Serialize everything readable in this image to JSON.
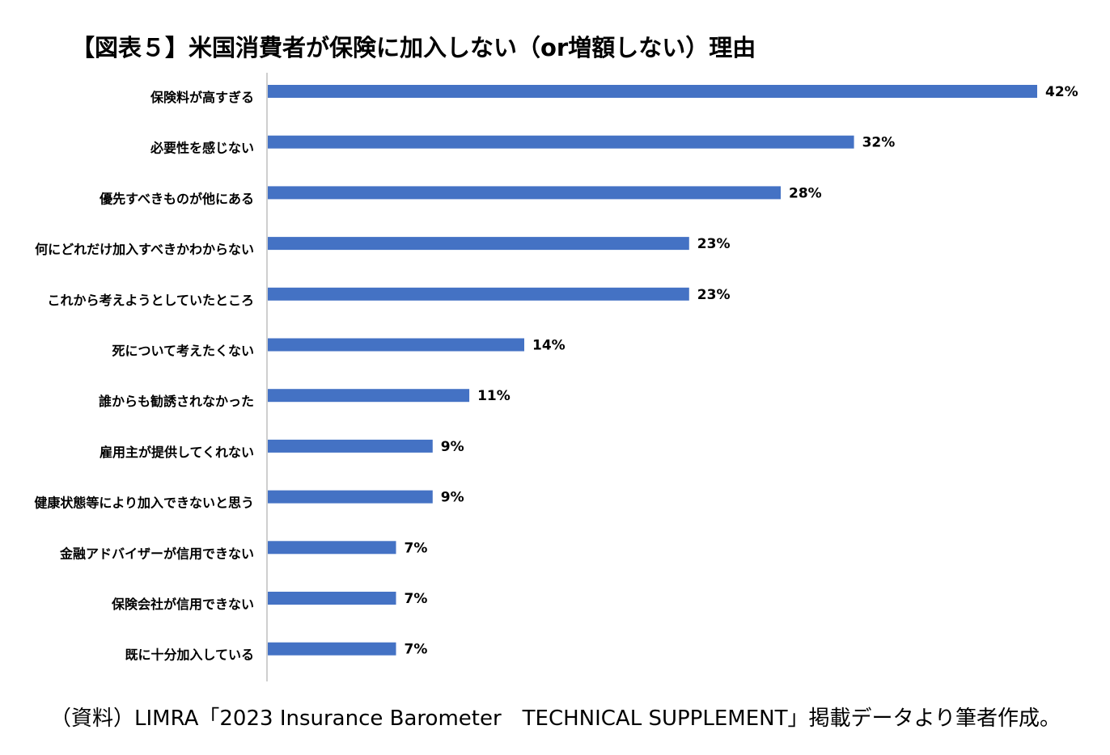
{
  "chart_data": {
    "type": "bar",
    "orientation": "horizontal",
    "title": "【図表５】米国消費者が保険に加入しない（or増額しない）理由",
    "categories": [
      "保険料が高すぎる",
      "必要性を感じない",
      "優先すべきものが他にある",
      "何にどれだけ加入すべきかわからない",
      "これから考えようとしていたところ",
      "死について考えたくない",
      "誰からも勧誘されなかった",
      "雇用主が提供してくれない",
      "健康状態等により加入できないと思う",
      "金融アドバイザーが信用できない",
      "保険会社が信用できない",
      "既に十分加入している"
    ],
    "values": [
      42,
      32,
      28,
      23,
      23,
      14,
      11,
      9,
      9,
      7,
      7,
      7
    ],
    "value_labels": [
      "42%",
      "32%",
      "28%",
      "23%",
      "23%",
      "14%",
      "11%",
      "9%",
      "9%",
      "7%",
      "7%",
      "7%"
    ],
    "unit": "%",
    "xlim": [
      0,
      42
    ],
    "grid": false,
    "bar_color": "#4472C4"
  },
  "source_note": "（資料）LIMRA「2023 Insurance Barometer　TECHNICAL SUPPLEMENT」掲載データより筆者作成。"
}
